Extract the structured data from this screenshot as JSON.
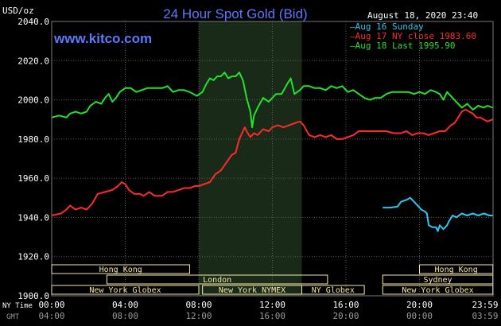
{
  "chart_data": {
    "type": "line",
    "title": "24 Hour Spot Gold (Bid)",
    "unit_label": "USD/oz",
    "timestamp": "August 18, 2020 23:40",
    "watermark": "www.kitco.com",
    "ylim": [
      1900,
      2040
    ],
    "yticks": [
      1900,
      1920,
      1940,
      1960,
      1980,
      2000,
      2020,
      2040
    ],
    "ytick_labels": [
      "1900.0",
      "1920.0",
      "1940.0",
      "1960.0",
      "1980.0",
      "2000.0",
      "2020.0",
      "2040.0"
    ],
    "xlim_hours": [
      0,
      24
    ],
    "x_row1_label": "NY Time",
    "x_row2_label": "GMT",
    "xticks_ny": [
      "00:00",
      "04:00",
      "08:00",
      "12:00",
      "16:00",
      "20:00",
      "23:59"
    ],
    "xticks_gmt": [
      "04:00",
      "08:00",
      "12:00",
      "16:00",
      "20:00",
      "00:00",
      "03:59"
    ],
    "highlight_band_hours": [
      8.0,
      13.6
    ],
    "colors": {
      "background": "#000000",
      "grid": "#5a5a5a",
      "title": "#5b78ff",
      "axis_text": "#ffffff",
      "session_fill": "#f5e9a8",
      "band": "#1a2a18"
    },
    "series": [
      {
        "name": "Aug 16 Sunday",
        "color": "#2ec6ee",
        "points": [
          [
            18.0,
            1945
          ],
          [
            18.4,
            1945
          ],
          [
            18.8,
            1945.5
          ],
          [
            19.0,
            1948
          ],
          [
            19.3,
            1949
          ],
          [
            19.5,
            1950
          ],
          [
            19.7,
            1948
          ],
          [
            19.9,
            1946
          ],
          [
            20.1,
            1944
          ],
          [
            20.3,
            1943
          ],
          [
            20.4,
            1942
          ],
          [
            20.5,
            1936
          ],
          [
            20.7,
            1935
          ],
          [
            20.9,
            1935
          ],
          [
            21.0,
            1933
          ],
          [
            21.1,
            1936
          ],
          [
            21.3,
            1934
          ],
          [
            21.5,
            1936
          ],
          [
            21.6,
            1938
          ],
          [
            21.8,
            1941
          ],
          [
            22.0,
            1940
          ],
          [
            22.3,
            1942
          ],
          [
            22.6,
            1941
          ],
          [
            22.9,
            1942
          ],
          [
            23.2,
            1941
          ],
          [
            23.5,
            1942
          ],
          [
            23.8,
            1941
          ],
          [
            23.98,
            1941
          ]
        ]
      },
      {
        "name": "Aug 17 NY close 1983.60",
        "color": "#ff2a2a",
        "points": [
          [
            0.0,
            1941
          ],
          [
            0.5,
            1942
          ],
          [
            0.8,
            1944
          ],
          [
            1.0,
            1946
          ],
          [
            1.3,
            1944
          ],
          [
            1.6,
            1945
          ],
          [
            1.9,
            1944
          ],
          [
            2.2,
            1947
          ],
          [
            2.5,
            1952
          ],
          [
            2.9,
            1953
          ],
          [
            3.3,
            1954
          ],
          [
            3.6,
            1956
          ],
          [
            3.8,
            1958
          ],
          [
            4.0,
            1957
          ],
          [
            4.2,
            1954
          ],
          [
            4.5,
            1952
          ],
          [
            4.8,
            1952
          ],
          [
            5.0,
            1951
          ],
          [
            5.3,
            1953
          ],
          [
            5.6,
            1951
          ],
          [
            6.0,
            1951
          ],
          [
            6.3,
            1953
          ],
          [
            6.6,
            1953
          ],
          [
            6.9,
            1954
          ],
          [
            7.2,
            1955
          ],
          [
            7.5,
            1955
          ],
          [
            7.8,
            1956
          ],
          [
            8.0,
            1956
          ],
          [
            8.3,
            1957
          ],
          [
            8.6,
            1958
          ],
          [
            8.9,
            1962
          ],
          [
            9.2,
            1964
          ],
          [
            9.5,
            1968
          ],
          [
            9.8,
            1972
          ],
          [
            10.0,
            1973
          ],
          [
            10.2,
            1980
          ],
          [
            10.4,
            1984
          ],
          [
            10.5,
            1986
          ],
          [
            10.6,
            1984
          ],
          [
            10.8,
            1981
          ],
          [
            11.0,
            1983
          ],
          [
            11.2,
            1982
          ],
          [
            11.5,
            1985
          ],
          [
            11.8,
            1984
          ],
          [
            12.0,
            1986
          ],
          [
            12.3,
            1987
          ],
          [
            12.6,
            1986
          ],
          [
            12.9,
            1987
          ],
          [
            13.2,
            1988
          ],
          [
            13.5,
            1989
          ],
          [
            13.7,
            1987
          ],
          [
            14.0,
            1982
          ],
          [
            14.3,
            1981
          ],
          [
            14.6,
            1982
          ],
          [
            14.9,
            1981
          ],
          [
            15.2,
            1982
          ],
          [
            15.5,
            1980
          ],
          [
            15.8,
            1980
          ],
          [
            16.1,
            1981
          ],
          [
            16.4,
            1982
          ],
          [
            16.7,
            1984
          ],
          [
            17.0,
            1984
          ],
          [
            17.5,
            1984
          ],
          [
            17.9,
            1984
          ],
          [
            18.2,
            1984
          ],
          [
            18.6,
            1983
          ],
          [
            19.0,
            1983
          ],
          [
            19.3,
            1984
          ],
          [
            19.6,
            1982
          ],
          [
            19.9,
            1983
          ],
          [
            20.2,
            1983
          ],
          [
            20.5,
            1982
          ],
          [
            20.8,
            1983
          ],
          [
            21.1,
            1984
          ],
          [
            21.4,
            1984
          ],
          [
            21.7,
            1987
          ],
          [
            21.9,
            1988
          ],
          [
            22.1,
            1991
          ],
          [
            22.3,
            1994
          ],
          [
            22.5,
            1995
          ],
          [
            22.7,
            1994
          ],
          [
            22.9,
            1993
          ],
          [
            23.1,
            1991
          ],
          [
            23.3,
            1991
          ],
          [
            23.5,
            1990
          ],
          [
            23.7,
            1989
          ],
          [
            23.98,
            1990
          ]
        ]
      },
      {
        "name": "Aug 18 Last 1995.90",
        "color": "#24e12b",
        "points": [
          [
            0.0,
            1991
          ],
          [
            0.4,
            1992
          ],
          [
            0.8,
            1991
          ],
          [
            1.0,
            1993
          ],
          [
            1.3,
            1994
          ],
          [
            1.6,
            1993
          ],
          [
            1.9,
            1994
          ],
          [
            2.1,
            1997
          ],
          [
            2.4,
            1999
          ],
          [
            2.7,
            1998
          ],
          [
            2.9,
            2001
          ],
          [
            3.1,
            2003
          ],
          [
            3.3,
            1999
          ],
          [
            3.5,
            2001
          ],
          [
            3.7,
            2004
          ],
          [
            4.0,
            2006
          ],
          [
            4.3,
            2006
          ],
          [
            4.6,
            2004
          ],
          [
            4.9,
            2005
          ],
          [
            5.2,
            2006
          ],
          [
            5.6,
            2006
          ],
          [
            6.0,
            2006
          ],
          [
            6.3,
            2007
          ],
          [
            6.6,
            2004
          ],
          [
            6.9,
            2005
          ],
          [
            7.2,
            2005
          ],
          [
            7.5,
            2004
          ],
          [
            7.9,
            2002
          ],
          [
            8.2,
            2004
          ],
          [
            8.4,
            2008
          ],
          [
            8.6,
            2011
          ],
          [
            8.8,
            2010
          ],
          [
            9.0,
            2012
          ],
          [
            9.2,
            2012
          ],
          [
            9.4,
            2014
          ],
          [
            9.6,
            2011
          ],
          [
            9.8,
            2012
          ],
          [
            10.0,
            2012
          ],
          [
            10.2,
            2014
          ],
          [
            10.4,
            2010
          ],
          [
            10.6,
            2001
          ],
          [
            10.8,
            1994
          ],
          [
            10.9,
            1986
          ],
          [
            11.0,
            1992
          ],
          [
            11.2,
            1996
          ],
          [
            11.5,
            2001
          ],
          [
            11.8,
            1999
          ],
          [
            12.0,
            2001
          ],
          [
            12.2,
            2003
          ],
          [
            12.5,
            2003
          ],
          [
            12.8,
            2008
          ],
          [
            13.0,
            2011
          ],
          [
            13.2,
            2003
          ],
          [
            13.5,
            2005
          ],
          [
            13.7,
            2007
          ],
          [
            14.0,
            2007
          ],
          [
            14.3,
            2006
          ],
          [
            14.6,
            2006
          ],
          [
            14.9,
            2005
          ],
          [
            15.2,
            2007
          ],
          [
            15.5,
            2006
          ],
          [
            15.8,
            2007
          ],
          [
            16.1,
            2004
          ],
          [
            16.4,
            2005
          ],
          [
            16.7,
            2003
          ],
          [
            17.0,
            2001
          ],
          [
            17.3,
            2000
          ],
          [
            17.6,
            2001
          ],
          [
            17.9,
            2001
          ],
          [
            18.2,
            2003
          ],
          [
            18.5,
            2004
          ],
          [
            18.8,
            2004
          ],
          [
            19.1,
            2004
          ],
          [
            19.4,
            2004
          ],
          [
            19.7,
            2003
          ],
          [
            20.0,
            2004
          ],
          [
            20.3,
            2003
          ],
          [
            20.6,
            2005
          ],
          [
            20.9,
            2004
          ],
          [
            21.1,
            2003
          ],
          [
            21.3,
            2000
          ],
          [
            21.5,
            2004
          ],
          [
            21.7,
            2002
          ],
          [
            21.9,
            2000
          ],
          [
            22.1,
            1998
          ],
          [
            22.3,
            1996
          ],
          [
            22.6,
            1998
          ],
          [
            22.9,
            1995
          ],
          [
            23.2,
            1997
          ],
          [
            23.5,
            1996
          ],
          [
            23.7,
            1997
          ],
          [
            23.98,
            1996
          ]
        ]
      }
    ],
    "sessions": [
      {
        "label": "Hong Kong",
        "row": 0,
        "start": 0.0,
        "end": 7.5
      },
      {
        "label": "London",
        "row": 1,
        "start": 3.0,
        "end": 15.0
      },
      {
        "label": "New York Globex",
        "row": 2,
        "start": 0.0,
        "end": 8.0
      },
      {
        "label": "New York NYMEX",
        "row": 2,
        "start": 8.2,
        "end": 13.6
      },
      {
        "label": "NY Globex",
        "row": 2,
        "start": 13.6,
        "end": 17.0
      },
      {
        "label": "Hong Kong",
        "row": 0,
        "start": 20.0,
        "end": 23.99
      },
      {
        "label": "Sydney",
        "row": 1,
        "start": 18.0,
        "end": 23.99
      },
      {
        "label": "New York Globex",
        "row": 2,
        "start": 18.0,
        "end": 23.99
      }
    ]
  }
}
